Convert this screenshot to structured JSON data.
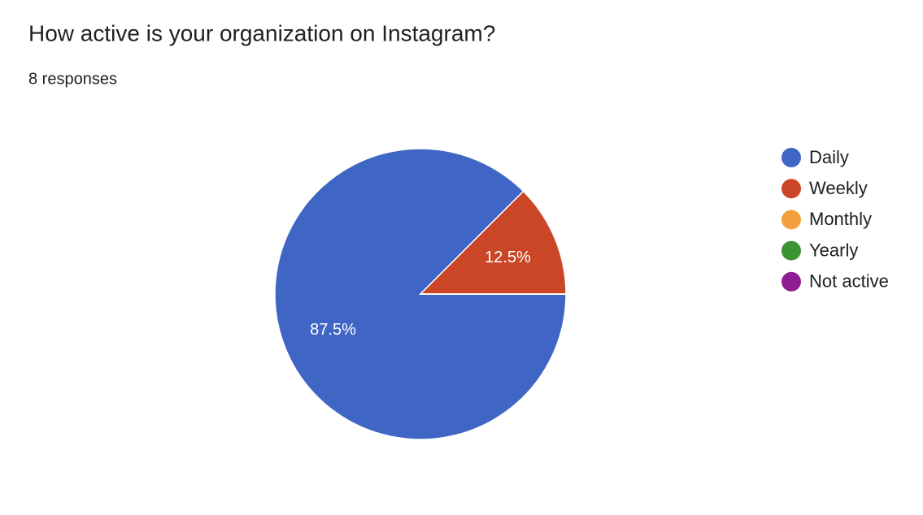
{
  "chart_data": {
    "type": "pie",
    "title": "How active is your organization on Instagram?",
    "subtitle": "8 responses",
    "categories": [
      "Daily",
      "Weekly",
      "Monthly",
      "Yearly",
      "Not active"
    ],
    "values": [
      87.5,
      12.5,
      0,
      0,
      0
    ],
    "value_labels": [
      "87.5%",
      "12.5%",
      null,
      null,
      null
    ],
    "colors": [
      "#3f65c5",
      "#cb4627",
      "#f3a03c",
      "#3b9334",
      "#8e1c92"
    ],
    "legend": "right"
  }
}
